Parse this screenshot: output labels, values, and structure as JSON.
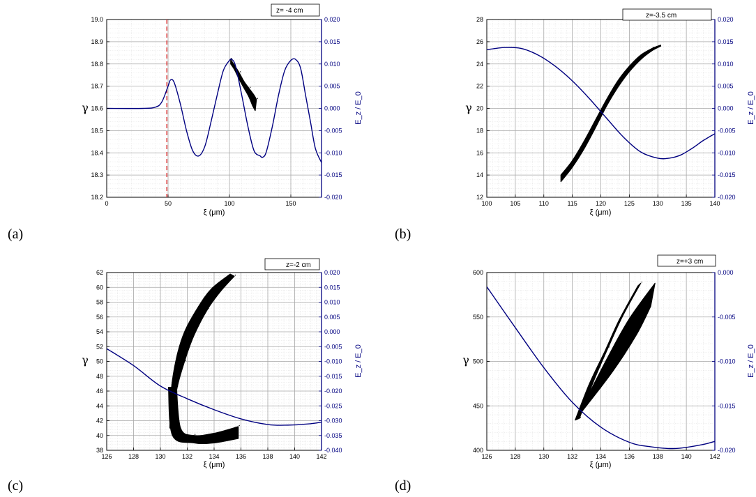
{
  "chart_data": [
    {
      "type": "scatter",
      "panel_label": "(a)",
      "legend": "z= -4 cm",
      "xlabel": "ξ (μm)",
      "ylabel": "γ",
      "y2label": "E_z / E_0",
      "xlim": [
        0,
        175
      ],
      "xticks": [
        0,
        50,
        100,
        150
      ],
      "ylim": [
        18.2,
        19.0
      ],
      "yticks": [
        18.2,
        18.3,
        18.4,
        18.5,
        18.6,
        18.7,
        18.8,
        18.9,
        19.0
      ],
      "y2lim": [
        -0.02,
        0.02
      ],
      "y2ticks": [
        -0.02,
        -0.015,
        -0.01,
        -0.005,
        0,
        0.005,
        0.01,
        0.015,
        0.02
      ],
      "marker_line_x": 49,
      "field_series": {
        "name": "E_z/E_0",
        "x": [
          0,
          30,
          40,
          45,
          50,
          52,
          55,
          60,
          65,
          70,
          75,
          80,
          85,
          90,
          95,
          100,
          102,
          105,
          110,
          115,
          120,
          125,
          127,
          130,
          135,
          140,
          145,
          150,
          154,
          158,
          162,
          166,
          170,
          175
        ],
        "y": [
          0,
          0,
          0.0003,
          0.0015,
          0.005,
          0.0064,
          0.0058,
          0.001,
          -0.005,
          -0.0095,
          -0.0107,
          -0.0085,
          -0.003,
          0.003,
          0.0085,
          0.0108,
          0.011,
          0.0095,
          0.003,
          -0.004,
          -0.0095,
          -0.0107,
          -0.011,
          -0.0098,
          -0.004,
          0.003,
          0.0085,
          0.0108,
          0.011,
          0.009,
          0.003,
          -0.003,
          -0.009,
          -0.0122
        ]
      },
      "particle_bands": [
        {
          "upper": [
            [
              101,
              18.82
            ],
            [
              104,
              18.795
            ],
            [
              108,
              18.76
            ],
            [
              112,
              18.72
            ],
            [
              116,
              18.69
            ],
            [
              120,
              18.66
            ],
            [
              122,
              18.64
            ]
          ],
          "lower": [
            [
              101,
              18.8
            ],
            [
              104,
              18.775
            ],
            [
              108,
              18.73
            ],
            [
              112,
              18.69
            ],
            [
              116,
              18.65
            ],
            [
              119,
              18.61
            ],
            [
              121,
              18.59
            ]
          ]
        }
      ]
    },
    {
      "type": "scatter",
      "panel_label": "(b)",
      "legend": "z=-3.5 cm",
      "xlabel": "ξ (μm)",
      "ylabel": "γ",
      "y2label": "E_z / E_0",
      "xlim": [
        100,
        140
      ],
      "xticks": [
        100,
        105,
        110,
        115,
        120,
        125,
        130,
        135,
        140
      ],
      "ylim": [
        12,
        28
      ],
      "yticks": [
        12,
        14,
        16,
        18,
        20,
        22,
        24,
        26,
        28
      ],
      "y2lim": [
        -0.02,
        0.02
      ],
      "y2ticks": [
        -0.02,
        -0.015,
        -0.01,
        -0.005,
        0,
        0.005,
        0.01,
        0.015,
        0.02
      ],
      "field_series": {
        "name": "E_z/E_0",
        "x": [
          100,
          103,
          106,
          109,
          112,
          115,
          118,
          121,
          124,
          127,
          130,
          132,
          134,
          136,
          138,
          140
        ],
        "y": [
          0.0132,
          0.0137,
          0.0135,
          0.012,
          0.0095,
          0.0062,
          0.0022,
          -0.0022,
          -0.0065,
          -0.0098,
          -0.0112,
          -0.0112,
          -0.0105,
          -0.009,
          -0.0072,
          -0.0057
        ]
      },
      "particle_bands": [
        {
          "upper": [
            [
              113,
              14.0
            ],
            [
              115,
              15.3
            ],
            [
              117,
              17.0
            ],
            [
              119,
              18.9
            ],
            [
              121,
              20.8
            ],
            [
              123,
              22.5
            ],
            [
              125,
              23.8
            ],
            [
              127,
              24.8
            ],
            [
              129,
              25.4
            ],
            [
              130.5,
              25.7
            ]
          ],
          "lower": [
            [
              113,
              13.4
            ],
            [
              115,
              14.7
            ],
            [
              117,
              16.3
            ],
            [
              119,
              18.2
            ],
            [
              121,
              20.2
            ],
            [
              123,
              21.9
            ],
            [
              125,
              23.3
            ],
            [
              127,
              24.4
            ],
            [
              129,
              25.2
            ],
            [
              130.5,
              25.6
            ]
          ]
        }
      ]
    },
    {
      "type": "scatter",
      "panel_label": "(c)",
      "legend": "z=-2 cm",
      "xlabel": "ξ (μm)",
      "ylabel": "γ",
      "y2label": "E_z / E_0",
      "xlim": [
        126,
        142
      ],
      "xticks": [
        126,
        128,
        130,
        132,
        134,
        136,
        138,
        140,
        142
      ],
      "ylim": [
        38,
        62
      ],
      "yticks": [
        38,
        40,
        42,
        44,
        46,
        48,
        50,
        52,
        54,
        56,
        58,
        60,
        62
      ],
      "y2lim": [
        -0.04,
        0.02
      ],
      "y2ticks": [
        -0.04,
        -0.035,
        -0.03,
        -0.025,
        -0.02,
        -0.015,
        -0.01,
        -0.005,
        0,
        0.005,
        0.01,
        0.015,
        0.02
      ],
      "field_series": {
        "name": "E_z/E_0",
        "x": [
          126,
          128,
          130,
          132,
          134,
          136,
          138,
          139.5,
          141,
          142
        ],
        "y": [
          -0.0057,
          -0.0114,
          -0.0183,
          -0.0226,
          -0.0263,
          -0.0294,
          -0.0313,
          -0.0315,
          -0.0311,
          -0.0305
        ]
      },
      "particle_bands": [
        {
          "upper": [
            [
              131,
              41.5
            ],
            [
              131.2,
              46.0
            ],
            [
              131.8,
              50.0
            ],
            [
              132.5,
              53.5
            ],
            [
              133.5,
              57.0
            ],
            [
              134.5,
              59.5
            ],
            [
              135.5,
              61.5
            ]
          ],
          "lower": [
            [
              130.7,
              41.0
            ],
            [
              130.8,
              46.0
            ],
            [
              131.2,
              50.5
            ],
            [
              131.8,
              54.0
            ],
            [
              132.8,
              57.3
            ],
            [
              133.8,
              59.8
            ],
            [
              135.2,
              61.8
            ]
          ]
        },
        {
          "upper": [
            [
              131.2,
              46.5
            ],
            [
              131.5,
              41.0
            ],
            [
              132.5,
              40.0
            ],
            [
              134.0,
              40.3
            ],
            [
              135.8,
              41.2
            ]
          ],
          "lower": [
            [
              130.6,
              46.5
            ],
            [
              130.9,
              40.0
            ],
            [
              132.5,
              39.0
            ],
            [
              134.0,
              39.0
            ],
            [
              135.8,
              39.6
            ]
          ]
        }
      ]
    },
    {
      "type": "scatter",
      "panel_label": "(d)",
      "legend": "z=+3 cm",
      "xlabel": "ξ (μm)",
      "ylabel": "γ",
      "y2label": "E_z / E_0",
      "xlim": [
        126,
        142
      ],
      "xticks": [
        126,
        128,
        130,
        132,
        134,
        136,
        138,
        140,
        142
      ],
      "ylim": [
        400,
        600
      ],
      "yticks": [
        400,
        450,
        500,
        550,
        600
      ],
      "y2lim": [
        -0.02,
        0
      ],
      "y2ticks": [
        -0.02,
        -0.015,
        -0.01,
        -0.005,
        0
      ],
      "field_series": {
        "name": "E_z/E_0",
        "x": [
          126,
          128,
          130,
          132,
          134,
          136,
          137.5,
          139.2,
          141,
          142
        ],
        "y": [
          -0.0016,
          -0.0062,
          -0.0107,
          -0.0146,
          -0.0174,
          -0.0191,
          -0.0196,
          -0.0198,
          -0.0194,
          -0.019
        ]
      },
      "particle_bands": [
        {
          "upper": [
            [
              132.5,
              436
            ],
            [
              133.5,
              478
            ],
            [
              134.5,
              515
            ],
            [
              135.5,
              550
            ],
            [
              136.8,
              588
            ]
          ],
          "lower": [
            [
              132.2,
              434
            ],
            [
              133.2,
              475
            ],
            [
              134.3,
              512
            ],
            [
              135.3,
              547
            ],
            [
              136.6,
              585
            ]
          ]
        },
        {
          "upper": [
            [
              132.8,
              452
            ],
            [
              134.5,
              505
            ],
            [
              136.0,
              548
            ],
            [
              137.8,
              588
            ]
          ],
          "lower": [
            [
              132.5,
              440
            ],
            [
              134.8,
              488
            ],
            [
              136.5,
              530
            ],
            [
              137.5,
              562
            ]
          ]
        }
      ]
    }
  ]
}
